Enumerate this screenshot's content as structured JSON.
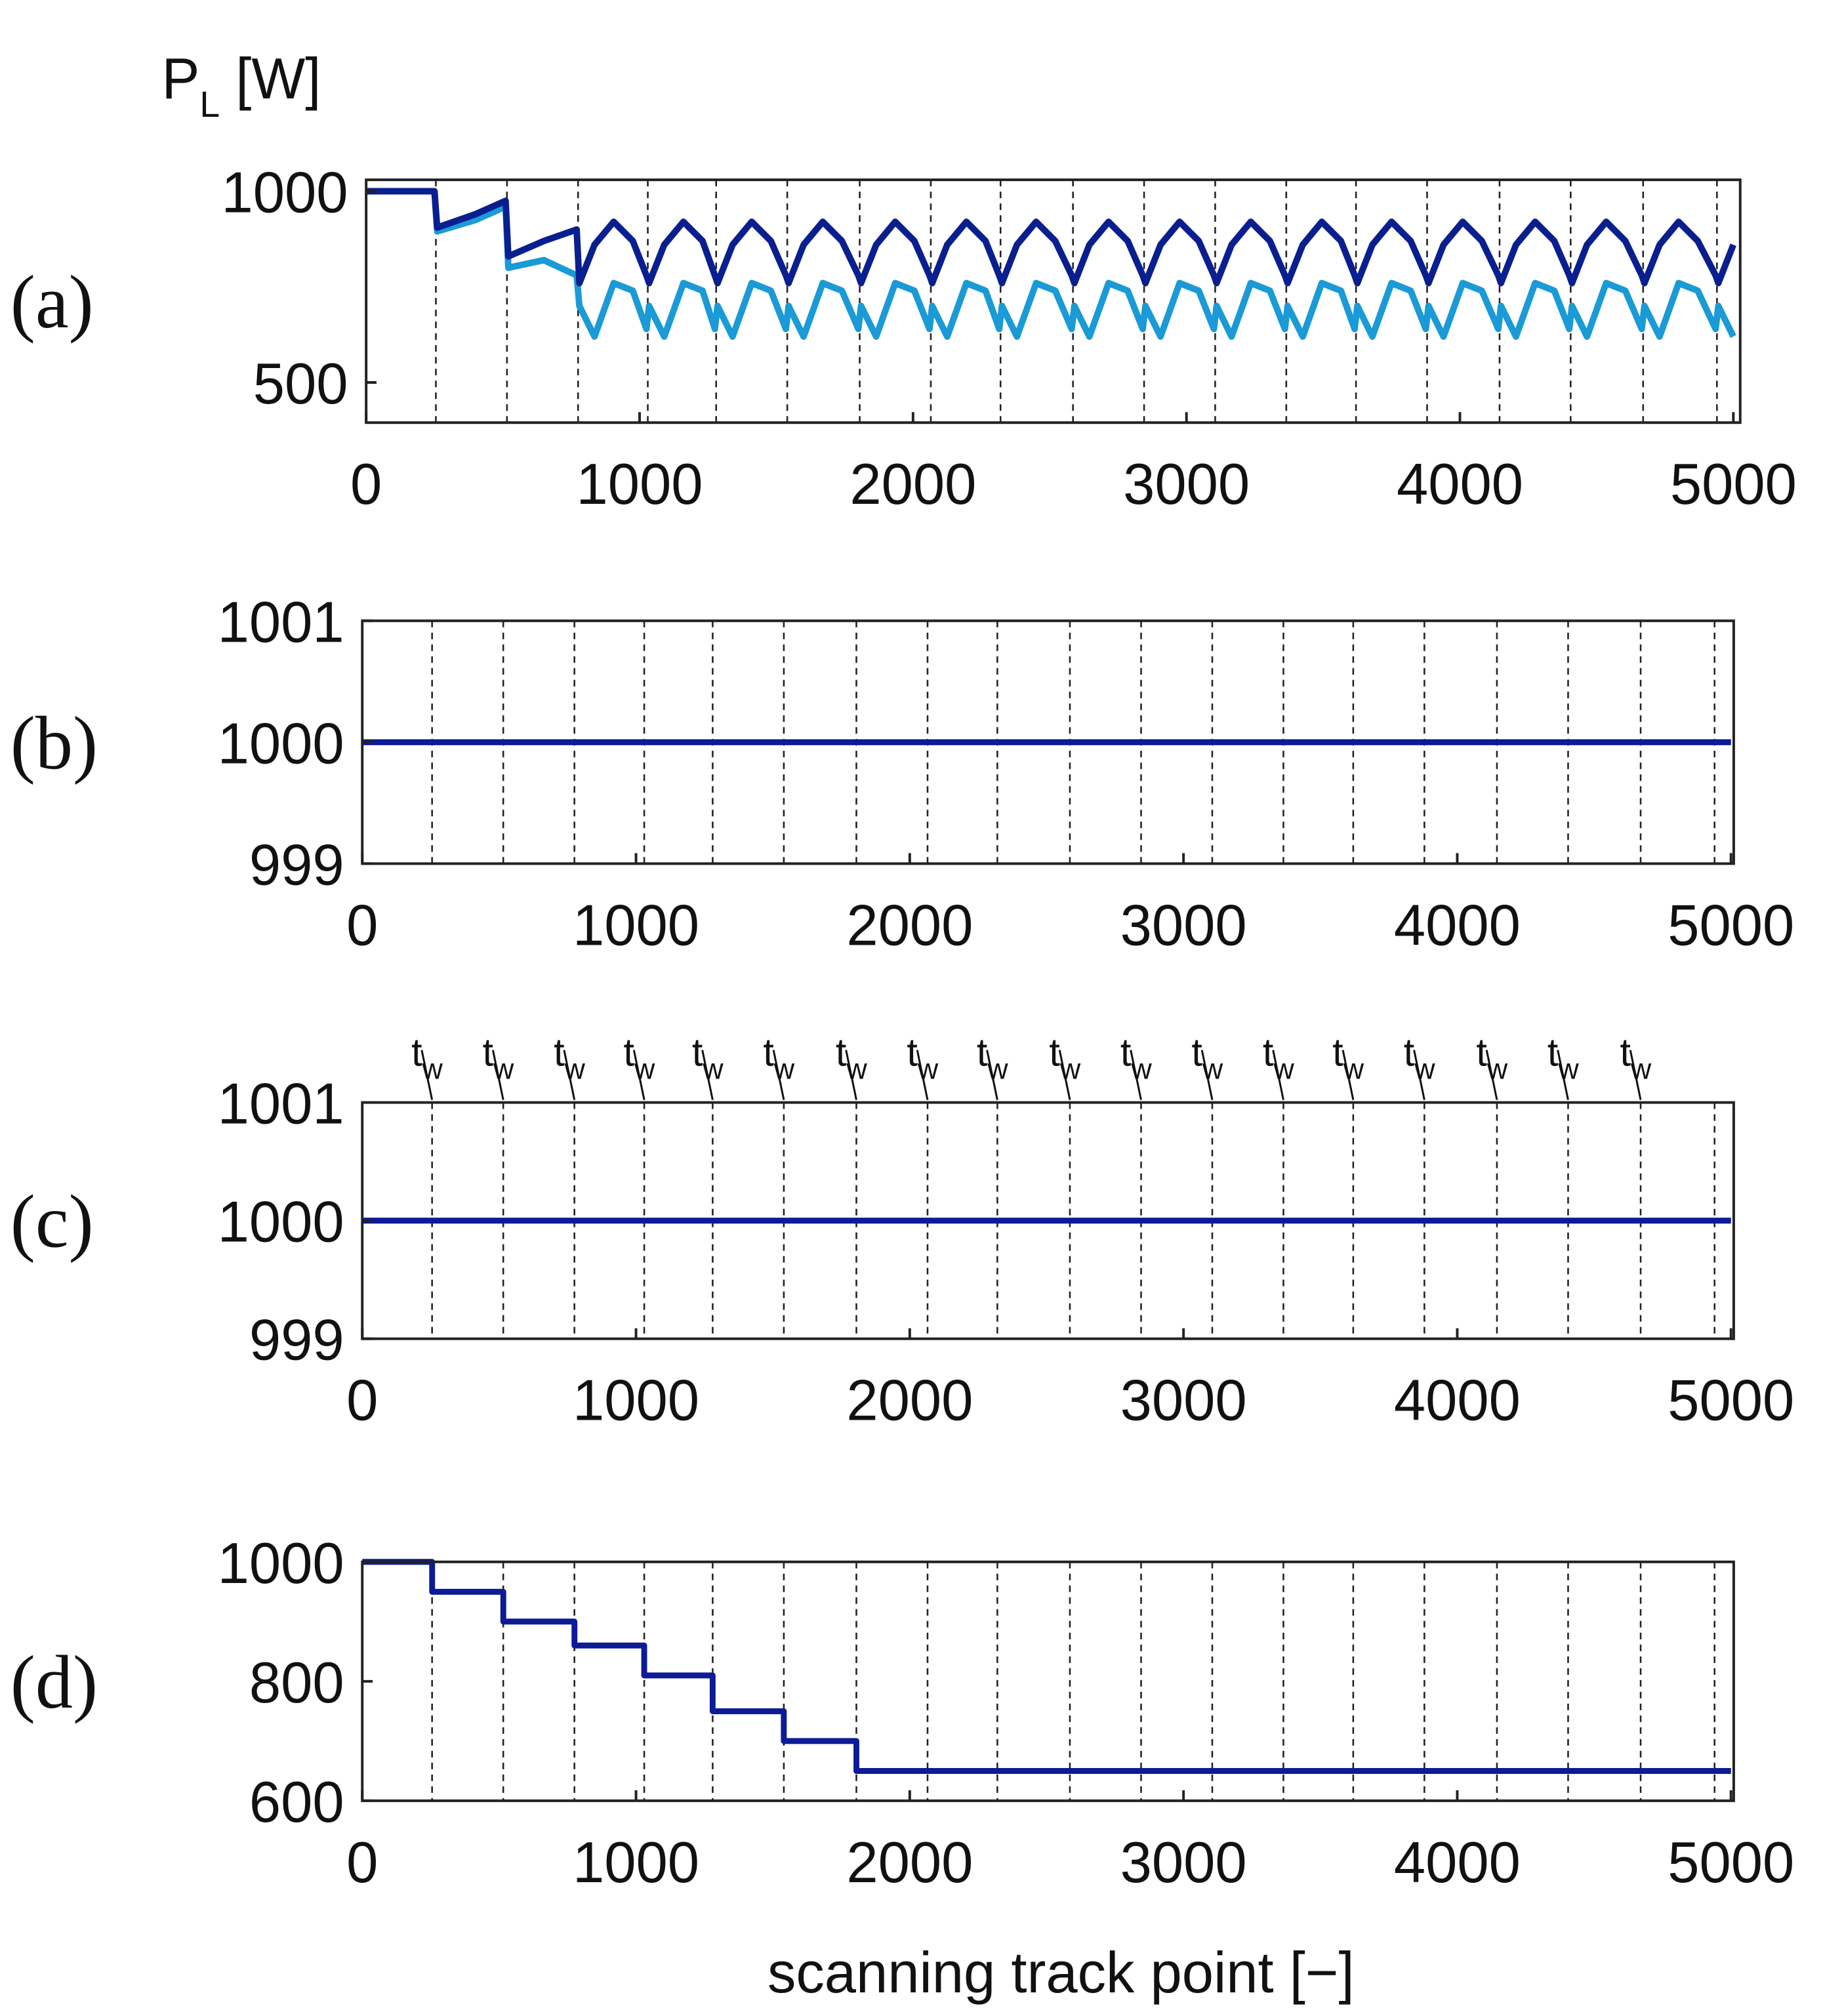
{
  "chart_data": [
    {
      "type": "line",
      "panel_label": "(a)",
      "y_label": {
        "main": "P",
        "sub": "L",
        "rest": " [W]"
      },
      "xlim": [
        0,
        5025
      ],
      "xticks": [
        0,
        1000,
        2000,
        3000,
        4000,
        5000
      ],
      "ylim": [
        395,
        1030
      ],
      "yticks": [
        500,
        1000
      ],
      "vlines": [
        255,
        515,
        775,
        1030,
        1280,
        1540,
        1805,
        2065,
        2320,
        2585,
        2845,
        3105,
        3365,
        3620,
        3880,
        4145,
        4405,
        4670,
        4940
      ],
      "x": [
        0,
        250,
        260,
        400,
        510,
        520,
        650,
        770,
        780,
        835,
        905,
        975,
        1025,
        1035,
        1090,
        1160,
        1230,
        1275,
        1285,
        1340,
        1410,
        1480,
        1535,
        1545,
        1600,
        1670,
        1740,
        1800,
        1810,
        1865,
        1935,
        2005,
        2060,
        2070,
        2125,
        2195,
        2265,
        2315,
        2325,
        2380,
        2450,
        2520,
        2580,
        2590,
        2645,
        2715,
        2785,
        2840,
        2850,
        2905,
        2975,
        3045,
        3100,
        3110,
        3165,
        3235,
        3305,
        3360,
        3370,
        3425,
        3495,
        3565,
        3615,
        3625,
        3680,
        3750,
        3820,
        3875,
        3885,
        3940,
        4010,
        4080,
        4140,
        4150,
        4205,
        4275,
        4345,
        4400,
        4410,
        4465,
        4535,
        4605,
        4665,
        4675,
        4730,
        4800,
        4870,
        4935,
        4945,
        5000
      ],
      "series": [
        {
          "color": "#1a9ad6",
          "values": [
            1000,
            1000,
            895,
            925,
            960,
            800,
            820,
            780,
            700,
            620,
            760,
            740,
            640,
            700,
            620,
            760,
            740,
            640,
            700,
            620,
            760,
            740,
            640,
            700,
            620,
            760,
            740,
            640,
            700,
            620,
            760,
            740,
            640,
            700,
            620,
            760,
            740,
            640,
            700,
            620,
            760,
            740,
            640,
            700,
            620,
            760,
            740,
            640,
            700,
            620,
            760,
            740,
            640,
            700,
            620,
            760,
            740,
            640,
            700,
            620,
            760,
            740,
            640,
            700,
            620,
            760,
            740,
            640,
            700,
            620,
            760,
            740,
            640,
            700,
            620,
            760,
            740,
            640,
            700,
            620,
            760,
            740,
            640,
            700,
            620,
            760,
            740,
            640,
            700,
            620
          ]
        },
        {
          "color": "#0a1f8f",
          "values": [
            1000,
            1000,
            905,
            940,
            975,
            830,
            870,
            900,
            760,
            860,
            920,
            870,
            780,
            760,
            860,
            920,
            870,
            780,
            760,
            860,
            920,
            870,
            780,
            760,
            860,
            920,
            870,
            780,
            760,
            860,
            920,
            870,
            780,
            760,
            860,
            920,
            870,
            780,
            760,
            860,
            920,
            870,
            780,
            760,
            860,
            920,
            870,
            780,
            760,
            860,
            920,
            870,
            780,
            760,
            860,
            920,
            870,
            780,
            760,
            860,
            920,
            870,
            780,
            760,
            860,
            920,
            870,
            780,
            760,
            860,
            920,
            870,
            780,
            760,
            860,
            920,
            870,
            780,
            760,
            860,
            920,
            870,
            780,
            760,
            860,
            920,
            870,
            780,
            760,
            860
          ]
        }
      ]
    },
    {
      "type": "line",
      "panel_label": "(b)",
      "xlim": [
        0,
        5010
      ],
      "xticks": [
        0,
        1000,
        2000,
        3000,
        4000,
        5000
      ],
      "ylim": [
        999,
        1001
      ],
      "yticks": [
        999,
        1000,
        1001
      ],
      "vlines": [
        255,
        515,
        775,
        1030,
        1280,
        1540,
        1805,
        2065,
        2320,
        2585,
        2845,
        3105,
        3365,
        3620,
        3880,
        4145,
        4405,
        4670,
        4940
      ],
      "x": [
        0,
        5000
      ],
      "series": [
        {
          "color": "#0d1b96",
          "values": [
            1000,
            1000
          ]
        }
      ]
    },
    {
      "type": "line",
      "panel_label": "(c)",
      "xlim": [
        0,
        5010
      ],
      "xticks": [
        0,
        1000,
        2000,
        3000,
        4000,
        5000
      ],
      "ylim": [
        999,
        1001
      ],
      "yticks": [
        999,
        1000,
        1001
      ],
      "vlines": [
        255,
        515,
        775,
        1030,
        1280,
        1540,
        1805,
        2065,
        2320,
        2585,
        2845,
        3105,
        3365,
        3620,
        3880,
        4145,
        4405,
        4670,
        4940
      ],
      "annotation_label": {
        "main": "t",
        "sub": "w"
      },
      "annotation_x": [
        255,
        515,
        775,
        1030,
        1280,
        1540,
        1805,
        2065,
        2320,
        2585,
        2845,
        3105,
        3365,
        3620,
        3880,
        4145,
        4405,
        4670
      ],
      "x": [
        0,
        5000
      ],
      "series": [
        {
          "color": "#0d1b96",
          "values": [
            1000,
            1000
          ]
        }
      ]
    },
    {
      "type": "line",
      "panel_label": "(d)",
      "x_label": "scanning track point [−]",
      "xlim": [
        0,
        5010
      ],
      "xticks": [
        0,
        1000,
        2000,
        3000,
        4000,
        5000
      ],
      "ylim": [
        600,
        1000
      ],
      "yticks": [
        600,
        800,
        1000
      ],
      "vlines": [
        255,
        515,
        775,
        1030,
        1280,
        1540,
        1805,
        2065,
        2320,
        2585,
        2845,
        3105,
        3365,
        3620,
        3880,
        4145,
        4405,
        4670,
        4940
      ],
      "x": [
        0,
        255,
        255,
        515,
        515,
        775,
        775,
        1030,
        1030,
        1280,
        1280,
        1540,
        1540,
        1805,
        1805,
        5000
      ],
      "series": [
        {
          "color": "#0d1b96",
          "values": [
            1000,
            1000,
            950,
            950,
            900,
            900,
            860,
            860,
            810,
            810,
            750,
            750,
            700,
            700,
            650,
            650
          ]
        }
      ]
    }
  ]
}
